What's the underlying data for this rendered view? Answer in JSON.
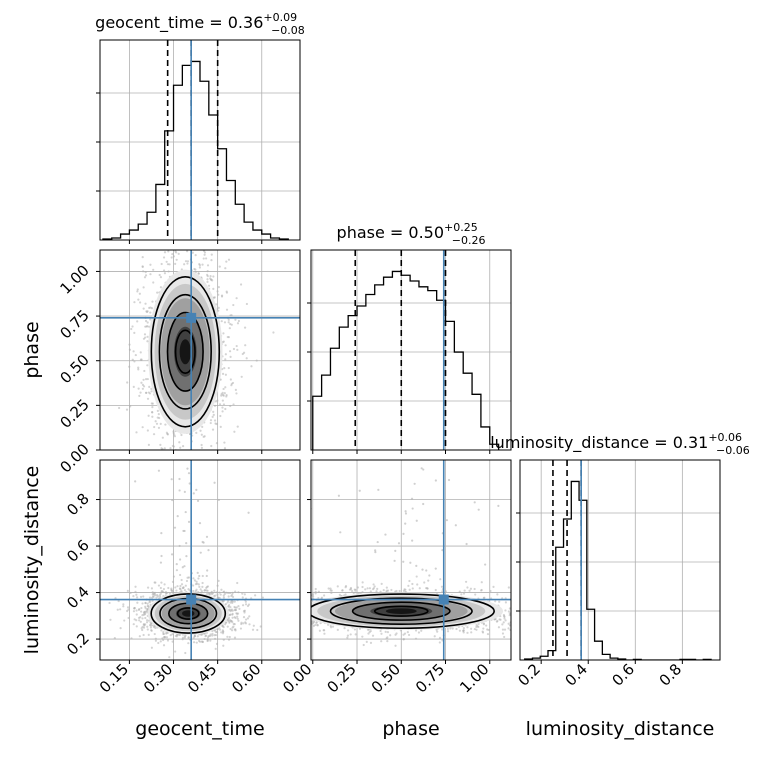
{
  "chart_data": [
    {
      "type": "histogram",
      "panel": "geocent_time",
      "title": {
        "name": "geocent_time",
        "median": "0.36",
        "plus": "+0.09",
        "minus": "−0.08"
      },
      "xlim": [
        0.05,
        0.73
      ],
      "bin_width": 0.03,
      "bin_left_edges": [
        0.06,
        0.09,
        0.12,
        0.15,
        0.18,
        0.21,
        0.24,
        0.27,
        0.3,
        0.33,
        0.36,
        0.39,
        0.42,
        0.45,
        0.48,
        0.51,
        0.54,
        0.57,
        0.6,
        0.63,
        0.66
      ],
      "values": [
        0.5,
        1,
        3,
        5,
        8,
        14,
        28,
        55,
        78,
        88,
        90,
        80,
        63,
        46,
        30,
        18,
        9,
        5,
        3,
        1,
        0.5
      ],
      "quantiles": [
        0.28,
        0.36,
        0.45
      ],
      "truth": 0.36,
      "grid": true
    },
    {
      "type": "histogram",
      "panel": "phase",
      "title": {
        "name": "phase",
        "median": "0.50",
        "plus": "+0.25",
        "minus": "−0.26"
      },
      "xlim": [
        -0.01,
        1.12
      ],
      "bin_width": 0.05,
      "bin_left_edges": [
        0.0,
        0.05,
        0.1,
        0.15,
        0.2,
        0.25,
        0.3,
        0.35,
        0.4,
        0.45,
        0.5,
        0.55,
        0.6,
        0.65,
        0.7,
        0.75,
        0.8,
        0.85,
        0.9,
        0.95,
        1.0
      ],
      "values": [
        28,
        39,
        53,
        64,
        70,
        75,
        81,
        86,
        90,
        93,
        91,
        88,
        85,
        83,
        78,
        67,
        51,
        40,
        29,
        12,
        3
      ],
      "quantiles": [
        0.24,
        0.5,
        0.75
      ],
      "truth": 0.74,
      "grid": true
    },
    {
      "type": "histogram",
      "panel": "luminosity_distance",
      "title": {
        "name": "luminosity_distance",
        "median": "0.31",
        "plus": "+0.06",
        "minus": "−0.06"
      },
      "xlim": [
        0.11,
        0.96
      ],
      "bin_width": 0.033,
      "bin_left_edges": [
        0.13,
        0.163,
        0.196,
        0.229,
        0.262,
        0.295,
        0.328,
        0.361,
        0.394,
        0.427,
        0.46,
        0.493,
        0.526,
        0.559,
        0.592,
        0.625,
        0.658,
        0.691,
        0.724,
        0.757,
        0.79,
        0.823,
        0.856,
        0.889
      ],
      "values": [
        0.5,
        1,
        2,
        5,
        60,
        75,
        95,
        85,
        27,
        10,
        3,
        1,
        0.5,
        0,
        0.3,
        0,
        0,
        0,
        0,
        0,
        0.3,
        0.3,
        0,
        0.3
      ],
      "quantiles": [
        0.25,
        0.31,
        0.37
      ],
      "truth": 0.37,
      "grid": true
    },
    {
      "type": "scatter",
      "panel": "phase vs geocent_time",
      "xlabel": "",
      "ylabel": "phase",
      "xlim": [
        0.05,
        0.73
      ],
      "ylim": [
        0.0,
        1.12
      ],
      "mean": [
        0.34,
        0.55
      ],
      "std": [
        0.055,
        0.2
      ],
      "truth": [
        0.36,
        0.74
      ],
      "x_ticks": [
        0.15,
        0.3,
        0.45,
        0.6
      ],
      "y_ticks": [
        0.0,
        0.25,
        0.5,
        0.75,
        1.0
      ],
      "y_tick_labels": [
        "0.00",
        "0.25",
        "0.50",
        "0.75",
        "1.00"
      ],
      "grid": true
    },
    {
      "type": "scatter",
      "panel": "luminosity_distance vs geocent_time",
      "xlabel": "geocent_time",
      "ylabel": "luminosity_distance",
      "xlim": [
        0.05,
        0.73
      ],
      "ylim": [
        0.11,
        0.97
      ],
      "mean": [
        0.35,
        0.31
      ],
      "std": [
        0.06,
        0.04
      ],
      "truth": [
        0.36,
        0.37
      ],
      "x_ticks": [
        0.15,
        0.3,
        0.45,
        0.6
      ],
      "x_tick_labels": [
        "0.15",
        "0.30",
        "0.45",
        "0.60"
      ],
      "y_ticks": [
        0.2,
        0.4,
        0.6,
        0.8
      ],
      "y_tick_labels": [
        "0.2",
        "0.4",
        "0.6",
        "0.8"
      ],
      "grid": true
    },
    {
      "type": "scatter",
      "panel": "luminosity_distance vs phase",
      "xlabel": "phase",
      "ylabel": "",
      "xlim": [
        -0.01,
        1.12
      ],
      "ylim": [
        0.11,
        0.97
      ],
      "mean": [
        0.5,
        0.32
      ],
      "std": [
        0.25,
        0.035
      ],
      "truth": [
        0.74,
        0.37
      ],
      "x_ticks": [
        0.0,
        0.25,
        0.5,
        0.75,
        1.0
      ],
      "x_tick_labels": [
        "0.00",
        "0.25",
        "0.50",
        "0.75",
        "1.00"
      ],
      "grid": true
    }
  ],
  "axis_labels": {
    "x": [
      "geocent_time",
      "phase",
      "luminosity_distance"
    ],
    "y": [
      "phase",
      "luminosity_distance"
    ]
  },
  "lum_x_ticks": [
    0.2,
    0.4,
    0.6,
    0.8
  ],
  "lum_x_tick_labels": [
    "0.2",
    "0.4",
    "0.6",
    "0.8"
  ],
  "colors": {
    "truth": "#4682b4",
    "hist": "#000000",
    "scatter_points": "#b0b0b0",
    "grid": "#b0b0b0"
  }
}
